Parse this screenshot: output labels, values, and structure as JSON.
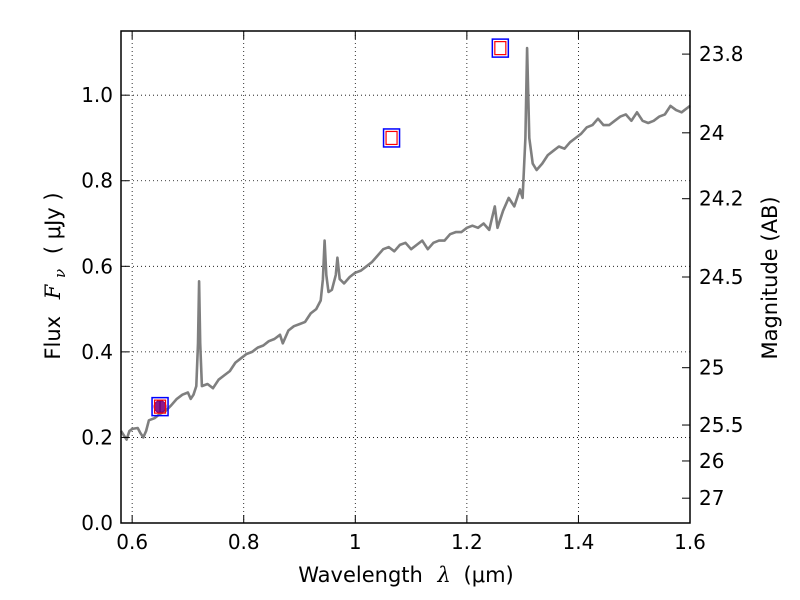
{
  "chart_data": {
    "type": "line",
    "xlabel": {
      "text": "Wavelength",
      "symbol": "λ",
      "unit": "(μm)"
    },
    "ylabel": {
      "text": "Flux",
      "symbol": "F",
      "subscript": "ν",
      "unit": "( μJy )"
    },
    "y2label": "Magnitude (AB)",
    "xlim": [
      0.58,
      1.6
    ],
    "ylim": [
      0.0,
      1.15
    ],
    "grid": true,
    "x_ticks": [
      {
        "value": 0.6,
        "label": "0.6"
      },
      {
        "value": 0.8,
        "label": "0.8"
      },
      {
        "value": 1.0,
        "label": "1"
      },
      {
        "value": 1.2,
        "label": "1.2"
      },
      {
        "value": 1.4,
        "label": "1.4"
      },
      {
        "value": 1.6,
        "label": "1.6"
      }
    ],
    "y_ticks": [
      {
        "value": 0.0,
        "label": "0.0"
      },
      {
        "value": 0.2,
        "label": "0.2"
      },
      {
        "value": 0.4,
        "label": "0.4"
      },
      {
        "value": 0.6,
        "label": "0.6"
      },
      {
        "value": 0.8,
        "label": "0.8"
      },
      {
        "value": 1.0,
        "label": "1.0"
      }
    ],
    "y2_ticks": [
      {
        "flux": 1.096,
        "label": "23.8"
      },
      {
        "flux": 0.912,
        "label": "24"
      },
      {
        "flux": 0.758,
        "label": "24.2"
      },
      {
        "flux": 0.575,
        "label": "24.5"
      },
      {
        "flux": 0.363,
        "label": "25"
      },
      {
        "flux": 0.229,
        "label": "25.5"
      },
      {
        "flux": 0.145,
        "label": "26"
      },
      {
        "flux": 0.058,
        "label": "27"
      }
    ],
    "spectrum": {
      "color": "#7f7f7f",
      "points": [
        [
          0.58,
          0.215
        ],
        [
          0.59,
          0.195
        ],
        [
          0.595,
          0.215
        ],
        [
          0.6,
          0.22
        ],
        [
          0.61,
          0.222
        ],
        [
          0.615,
          0.21
        ],
        [
          0.62,
          0.2
        ],
        [
          0.625,
          0.215
        ],
        [
          0.63,
          0.24
        ],
        [
          0.64,
          0.245
        ],
        [
          0.65,
          0.255
        ],
        [
          0.66,
          0.262
        ],
        [
          0.67,
          0.275
        ],
        [
          0.68,
          0.29
        ],
        [
          0.69,
          0.3
        ],
        [
          0.7,
          0.305
        ],
        [
          0.705,
          0.29
        ],
        [
          0.71,
          0.3
        ],
        [
          0.715,
          0.32
        ],
        [
          0.718,
          0.42
        ],
        [
          0.72,
          0.565
        ],
        [
          0.722,
          0.42
        ],
        [
          0.725,
          0.32
        ],
        [
          0.735,
          0.325
        ],
        [
          0.745,
          0.315
        ],
        [
          0.755,
          0.335
        ],
        [
          0.765,
          0.345
        ],
        [
          0.775,
          0.355
        ],
        [
          0.785,
          0.375
        ],
        [
          0.795,
          0.385
        ],
        [
          0.805,
          0.395
        ],
        [
          0.815,
          0.4
        ],
        [
          0.825,
          0.41
        ],
        [
          0.835,
          0.415
        ],
        [
          0.845,
          0.425
        ],
        [
          0.855,
          0.43
        ],
        [
          0.865,
          0.44
        ],
        [
          0.87,
          0.42
        ],
        [
          0.88,
          0.45
        ],
        [
          0.89,
          0.46
        ],
        [
          0.9,
          0.465
        ],
        [
          0.91,
          0.47
        ],
        [
          0.92,
          0.49
        ],
        [
          0.93,
          0.5
        ],
        [
          0.938,
          0.52
        ],
        [
          0.942,
          0.57
        ],
        [
          0.945,
          0.66
        ],
        [
          0.948,
          0.58
        ],
        [
          0.952,
          0.54
        ],
        [
          0.958,
          0.545
        ],
        [
          0.965,
          0.58
        ],
        [
          0.968,
          0.62
        ],
        [
          0.972,
          0.57
        ],
        [
          0.98,
          0.56
        ],
        [
          0.99,
          0.575
        ],
        [
          1.0,
          0.585
        ],
        [
          1.01,
          0.59
        ],
        [
          1.02,
          0.6
        ],
        [
          1.03,
          0.61
        ],
        [
          1.04,
          0.625
        ],
        [
          1.05,
          0.64
        ],
        [
          1.06,
          0.645
        ],
        [
          1.07,
          0.635
        ],
        [
          1.08,
          0.65
        ],
        [
          1.09,
          0.655
        ],
        [
          1.1,
          0.64
        ],
        [
          1.11,
          0.65
        ],
        [
          1.12,
          0.66
        ],
        [
          1.13,
          0.64
        ],
        [
          1.14,
          0.655
        ],
        [
          1.15,
          0.66
        ],
        [
          1.16,
          0.66
        ],
        [
          1.17,
          0.675
        ],
        [
          1.18,
          0.68
        ],
        [
          1.19,
          0.68
        ],
        [
          1.2,
          0.69
        ],
        [
          1.21,
          0.695
        ],
        [
          1.22,
          0.69
        ],
        [
          1.23,
          0.7
        ],
        [
          1.24,
          0.685
        ],
        [
          1.25,
          0.74
        ],
        [
          1.255,
          0.69
        ],
        [
          1.265,
          0.73
        ],
        [
          1.275,
          0.76
        ],
        [
          1.285,
          0.74
        ],
        [
          1.295,
          0.78
        ],
        [
          1.3,
          0.76
        ],
        [
          1.305,
          0.9
        ],
        [
          1.308,
          1.11
        ],
        [
          1.312,
          0.9
        ],
        [
          1.318,
          0.84
        ],
        [
          1.325,
          0.825
        ],
        [
          1.335,
          0.84
        ],
        [
          1.345,
          0.86
        ],
        [
          1.355,
          0.87
        ],
        [
          1.365,
          0.88
        ],
        [
          1.375,
          0.875
        ],
        [
          1.385,
          0.89
        ],
        [
          1.395,
          0.9
        ],
        [
          1.405,
          0.91
        ],
        [
          1.415,
          0.925
        ],
        [
          1.425,
          0.93
        ],
        [
          1.435,
          0.945
        ],
        [
          1.445,
          0.93
        ],
        [
          1.455,
          0.93
        ],
        [
          1.465,
          0.94
        ],
        [
          1.475,
          0.95
        ],
        [
          1.485,
          0.955
        ],
        [
          1.495,
          0.94
        ],
        [
          1.505,
          0.96
        ],
        [
          1.515,
          0.94
        ],
        [
          1.525,
          0.935
        ],
        [
          1.535,
          0.94
        ],
        [
          1.545,
          0.95
        ],
        [
          1.555,
          0.955
        ],
        [
          1.565,
          0.975
        ],
        [
          1.575,
          0.965
        ],
        [
          1.585,
          0.96
        ],
        [
          1.6,
          0.975
        ]
      ]
    },
    "photometry": [
      {
        "x": 0.65,
        "y": 0.272,
        "observed": true
      },
      {
        "x": 1.065,
        "y": 0.9,
        "observed": false
      },
      {
        "x": 1.26,
        "y": 1.11,
        "observed": false
      }
    ],
    "colors": {
      "model_box": "#0000ff",
      "model_inner": "#ff0000",
      "observed": "#800080"
    }
  }
}
